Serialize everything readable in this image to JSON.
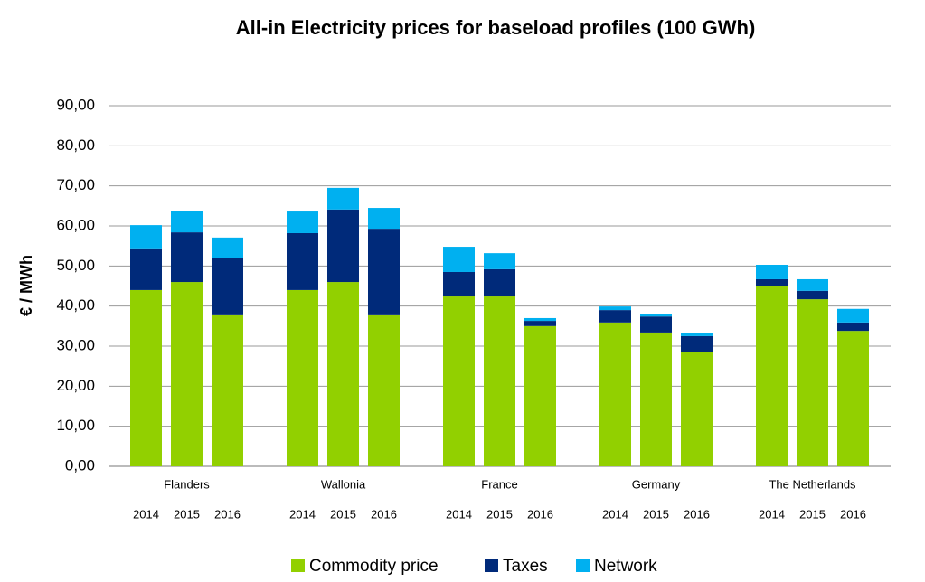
{
  "chart_data": {
    "type": "stacked_bar",
    "title": "All-in Electricity prices for baseload profiles (100 GWh)",
    "y_label": "€ / MWh",
    "groups": [
      "Flanders",
      "Wallonia",
      "France",
      "Germany",
      "The Netherlands"
    ],
    "categories": [
      "2014",
      "2015",
      "2016",
      "2014",
      "2015",
      "2016",
      "2014",
      "2015",
      "2016",
      "2014",
      "2015",
      "2016",
      "2014",
      "2015",
      "2016"
    ],
    "series": [
      {
        "name": "Commodity price",
        "color": "#92d000",
        "values": [
          44.0,
          46.0,
          37.7,
          44.0,
          46.0,
          37.7,
          42.4,
          42.4,
          35.0,
          35.9,
          33.4,
          28.6,
          45.1,
          41.7,
          33.8
        ]
      },
      {
        "name": "Taxes",
        "color": "#002a7a",
        "values": [
          10.4,
          12.4,
          14.2,
          14.2,
          18.1,
          21.6,
          6.1,
          6.8,
          1.3,
          3.1,
          4.0,
          3.9,
          1.6,
          2.1,
          2.1
        ]
      },
      {
        "name": "Network",
        "color": "#00b0f0",
        "values": [
          5.8,
          5.4,
          5.2,
          5.4,
          5.4,
          5.2,
          6.3,
          4.0,
          0.7,
          0.9,
          0.7,
          0.7,
          3.6,
          2.9,
          3.4
        ]
      }
    ],
    "ylim": [
      0,
      90
    ],
    "yticks": [
      {
        "value": 0,
        "label": "0,00"
      },
      {
        "value": 10,
        "label": "10,00"
      },
      {
        "value": 20,
        "label": "20,00"
      },
      {
        "value": 30,
        "label": "30,00"
      },
      {
        "value": 40,
        "label": "40,00"
      },
      {
        "value": 50,
        "label": "50,00"
      },
      {
        "value": 60,
        "label": "60,00"
      },
      {
        "value": 70,
        "label": "70,00"
      },
      {
        "value": 80,
        "label": "80,00"
      },
      {
        "value": 90,
        "label": "90,00"
      }
    ],
    "grid": true
  }
}
